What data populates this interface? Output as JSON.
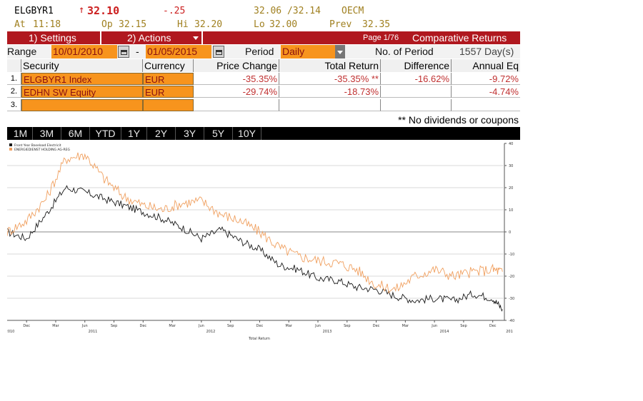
{
  "header": {
    "ticker": "ELGBYR1",
    "arrow": "↑",
    "last": "32.10",
    "change": "-.25",
    "bid_ask": "32.06 /32.14",
    "source": "OECM",
    "at_label": "At",
    "at_time": "11:18",
    "op_label": "Op",
    "op_value": "32.15",
    "hi_label": "Hi",
    "hi_value": "32.20",
    "lo_label": "Lo",
    "lo_value": "32.00",
    "prev_label": "Prev",
    "prev_value": "32.35"
  },
  "toolbar": {
    "settings_label": "1) Settings",
    "actions_label": "2) Actions",
    "page": "Page 1/76",
    "title": "Comparative Returns"
  },
  "range": {
    "label": "Range",
    "start": "10/01/2010",
    "dash": "-",
    "end": "01/05/2015",
    "period_label": "Period",
    "period_value": "Daily",
    "no_of_period_label": "No. of Period",
    "no_of_period_value": "1557 Day(s)"
  },
  "table": {
    "headers": [
      "Security",
      "Currency",
      "Price Change",
      "Total Return",
      "Difference",
      "Annual Eq"
    ],
    "rows": [
      {
        "num": "1.",
        "security": "ELGBYR1 Index",
        "currency": "EUR",
        "price_change": "-35.35%",
        "total_return": "-35.35% **",
        "difference": "-16.62%",
        "annual_eq": "-9.72%"
      },
      {
        "num": "2.",
        "security": "EDHN SW Equity",
        "currency": "EUR",
        "price_change": "-29.74%",
        "total_return": "-18.73%",
        "difference": "",
        "annual_eq": "-4.74%"
      },
      {
        "num": "3.",
        "security": "",
        "currency": "",
        "price_change": "",
        "total_return": "",
        "difference": "",
        "annual_eq": ""
      }
    ],
    "footnote": "** No dividends or coupons"
  },
  "periods": [
    "1M",
    "3M",
    "6M",
    "YTD",
    "1Y",
    "2Y",
    "3Y",
    "5Y",
    "10Y"
  ],
  "chart_data": {
    "type": "line",
    "xlabel": "Total Return",
    "ylim": [
      -40,
      40
    ],
    "yticks": [
      "40",
      "30",
      "20",
      "10",
      "0",
      "-10",
      "-20",
      "-30",
      "-40"
    ],
    "xticks_month": [
      "Dec",
      "Mar",
      "Jun",
      "Sep",
      "Dec",
      "Mar",
      "Jun",
      "Sep",
      "Dec",
      "Mar",
      "Jun",
      "Sep",
      "Dec",
      "Mar",
      "Jun",
      "Sep",
      "Dec"
    ],
    "xticks_year": [
      "2010",
      "2011",
      "2012",
      "2013",
      "2014",
      "201"
    ],
    "colors": {
      "series1": "#1a1a1a",
      "series2": "#f0a060"
    },
    "series": [
      {
        "name": "Front Year Baseload Electricit",
        "x": [
          "2010-10",
          "2010-12",
          "2011-02",
          "2011-04",
          "2011-06",
          "2011-08",
          "2011-10",
          "2011-12",
          "2012-02",
          "2012-04",
          "2012-06",
          "2012-08",
          "2012-10",
          "2012-12",
          "2013-02",
          "2013-04",
          "2013-06",
          "2013-08",
          "2013-10",
          "2013-12",
          "2014-02",
          "2014-04",
          "2014-06",
          "2014-08",
          "2014-10",
          "2014-12",
          "2015-01"
        ],
        "values": [
          0,
          -3,
          8,
          20,
          18,
          15,
          12,
          9,
          6,
          2,
          -3,
          1,
          -4,
          -8,
          -15,
          -17,
          -21,
          -22,
          -25,
          -26,
          -29,
          -31,
          -30,
          -31,
          -28,
          -30,
          -35
        ]
      },
      {
        "name": "ENERGIEDIENST HOLDING AG-REG",
        "x": [
          "2010-10",
          "2010-12",
          "2011-02",
          "2011-04",
          "2011-06",
          "2011-08",
          "2011-10",
          "2011-12",
          "2012-02",
          "2012-04",
          "2012-06",
          "2012-08",
          "2012-10",
          "2012-12",
          "2013-02",
          "2013-04",
          "2013-06",
          "2013-08",
          "2013-10",
          "2013-12",
          "2014-02",
          "2014-04",
          "2014-06",
          "2014-08",
          "2014-10",
          "2014-12",
          "2015-01"
        ],
        "values": [
          0,
          5,
          15,
          33,
          35,
          24,
          16,
          12,
          10,
          13,
          14,
          8,
          5,
          0,
          -7,
          -11,
          -13,
          -14,
          -17,
          -24,
          -26,
          -20,
          -17,
          -20,
          -18,
          -17,
          -18
        ]
      }
    ]
  }
}
